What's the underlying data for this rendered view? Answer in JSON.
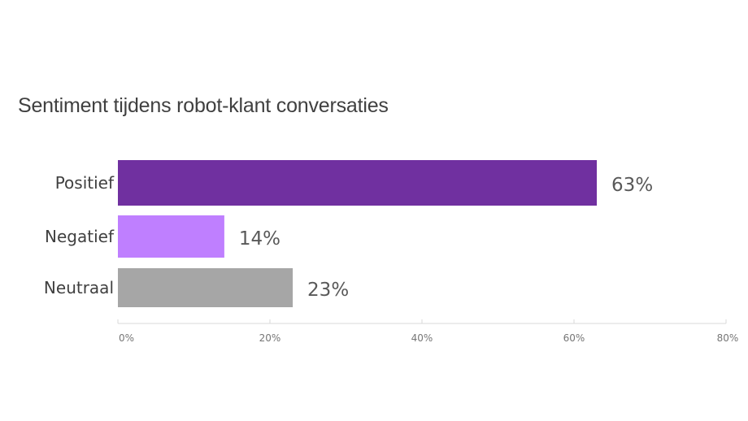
{
  "chart_data": {
    "type": "bar",
    "orientation": "horizontal",
    "title": "Sentiment tijdens robot-klant conversaties",
    "xlabel": "",
    "ylabel": "",
    "categories": [
      "Positief",
      "Negatief",
      "Neutraal"
    ],
    "values": [
      63,
      14,
      23
    ],
    "value_labels": [
      "63%",
      "14%",
      "23%"
    ],
    "colors": [
      "#7030a0",
      "#bf7fff",
      "#a6a6a6"
    ],
    "xlim": [
      0,
      80
    ],
    "x_ticks": [
      0,
      20,
      40,
      60,
      80
    ],
    "x_tick_labels": [
      "0%",
      "20%",
      "40%",
      "60%",
      "80%"
    ],
    "grid": false,
    "legend": "none"
  }
}
